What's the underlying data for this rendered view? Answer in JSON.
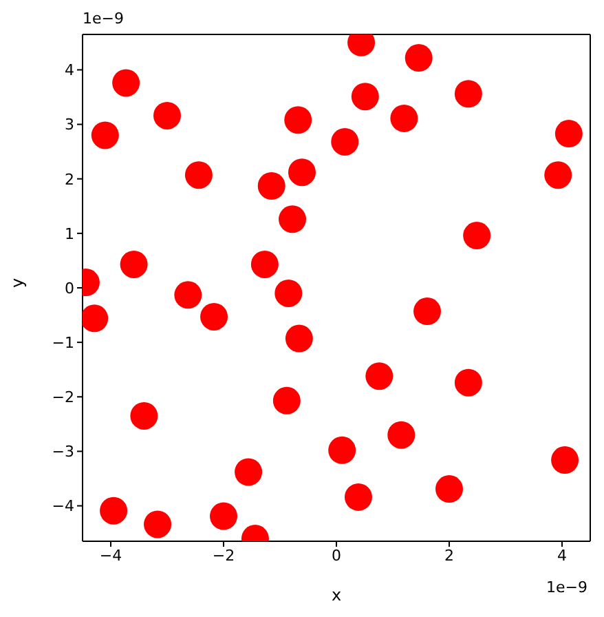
{
  "chart_data": {
    "type": "scatter",
    "xlabel": "x",
    "ylabel": "y",
    "marker": "circle",
    "annotations": [
      "1e−9",
      "1e−9"
    ],
    "xlim": [
      -4.5,
      4.5
    ],
    "ylim": [
      -4.65,
      4.65
    ],
    "xticks": [
      -4,
      -2,
      0,
      2,
      4
    ],
    "yticks": [
      -4,
      -3,
      -2,
      -1,
      0,
      1,
      2,
      3,
      4
    ],
    "series": [
      {
        "color": "#ff0000",
        "x": [
          -4.44,
          -4.29,
          -4.1,
          -3.73,
          -3.59,
          -3.0,
          -3.41,
          -3.95,
          -3.17,
          -2.44,
          -2.63,
          -2.17,
          -2.0,
          -1.56,
          -1.44,
          -1.15,
          -1.27,
          -0.85,
          -0.78,
          -0.68,
          -0.61,
          -0.66,
          -0.88,
          0.15,
          0.44,
          0.51,
          0.1,
          0.39,
          0.76,
          1.2,
          1.46,
          1.15,
          1.61,
          2.0,
          2.34,
          2.34,
          2.49,
          3.93,
          4.12,
          4.05
        ],
        "values": [
          0.1,
          -0.56,
          2.8,
          3.76,
          0.43,
          3.16,
          -2.35,
          -4.09,
          -4.34,
          2.07,
          -0.13,
          -0.53,
          -4.19,
          -3.38,
          -4.6,
          1.87,
          0.43,
          -0.1,
          1.26,
          3.08,
          2.12,
          -0.93,
          -2.07,
          2.68,
          4.5,
          3.51,
          -2.98,
          -3.84,
          -1.62,
          3.11,
          4.22,
          -2.7,
          -0.43,
          -3.69,
          3.56,
          -1.74,
          0.96,
          2.07,
          2.83,
          -3.16
        ]
      }
    ]
  }
}
